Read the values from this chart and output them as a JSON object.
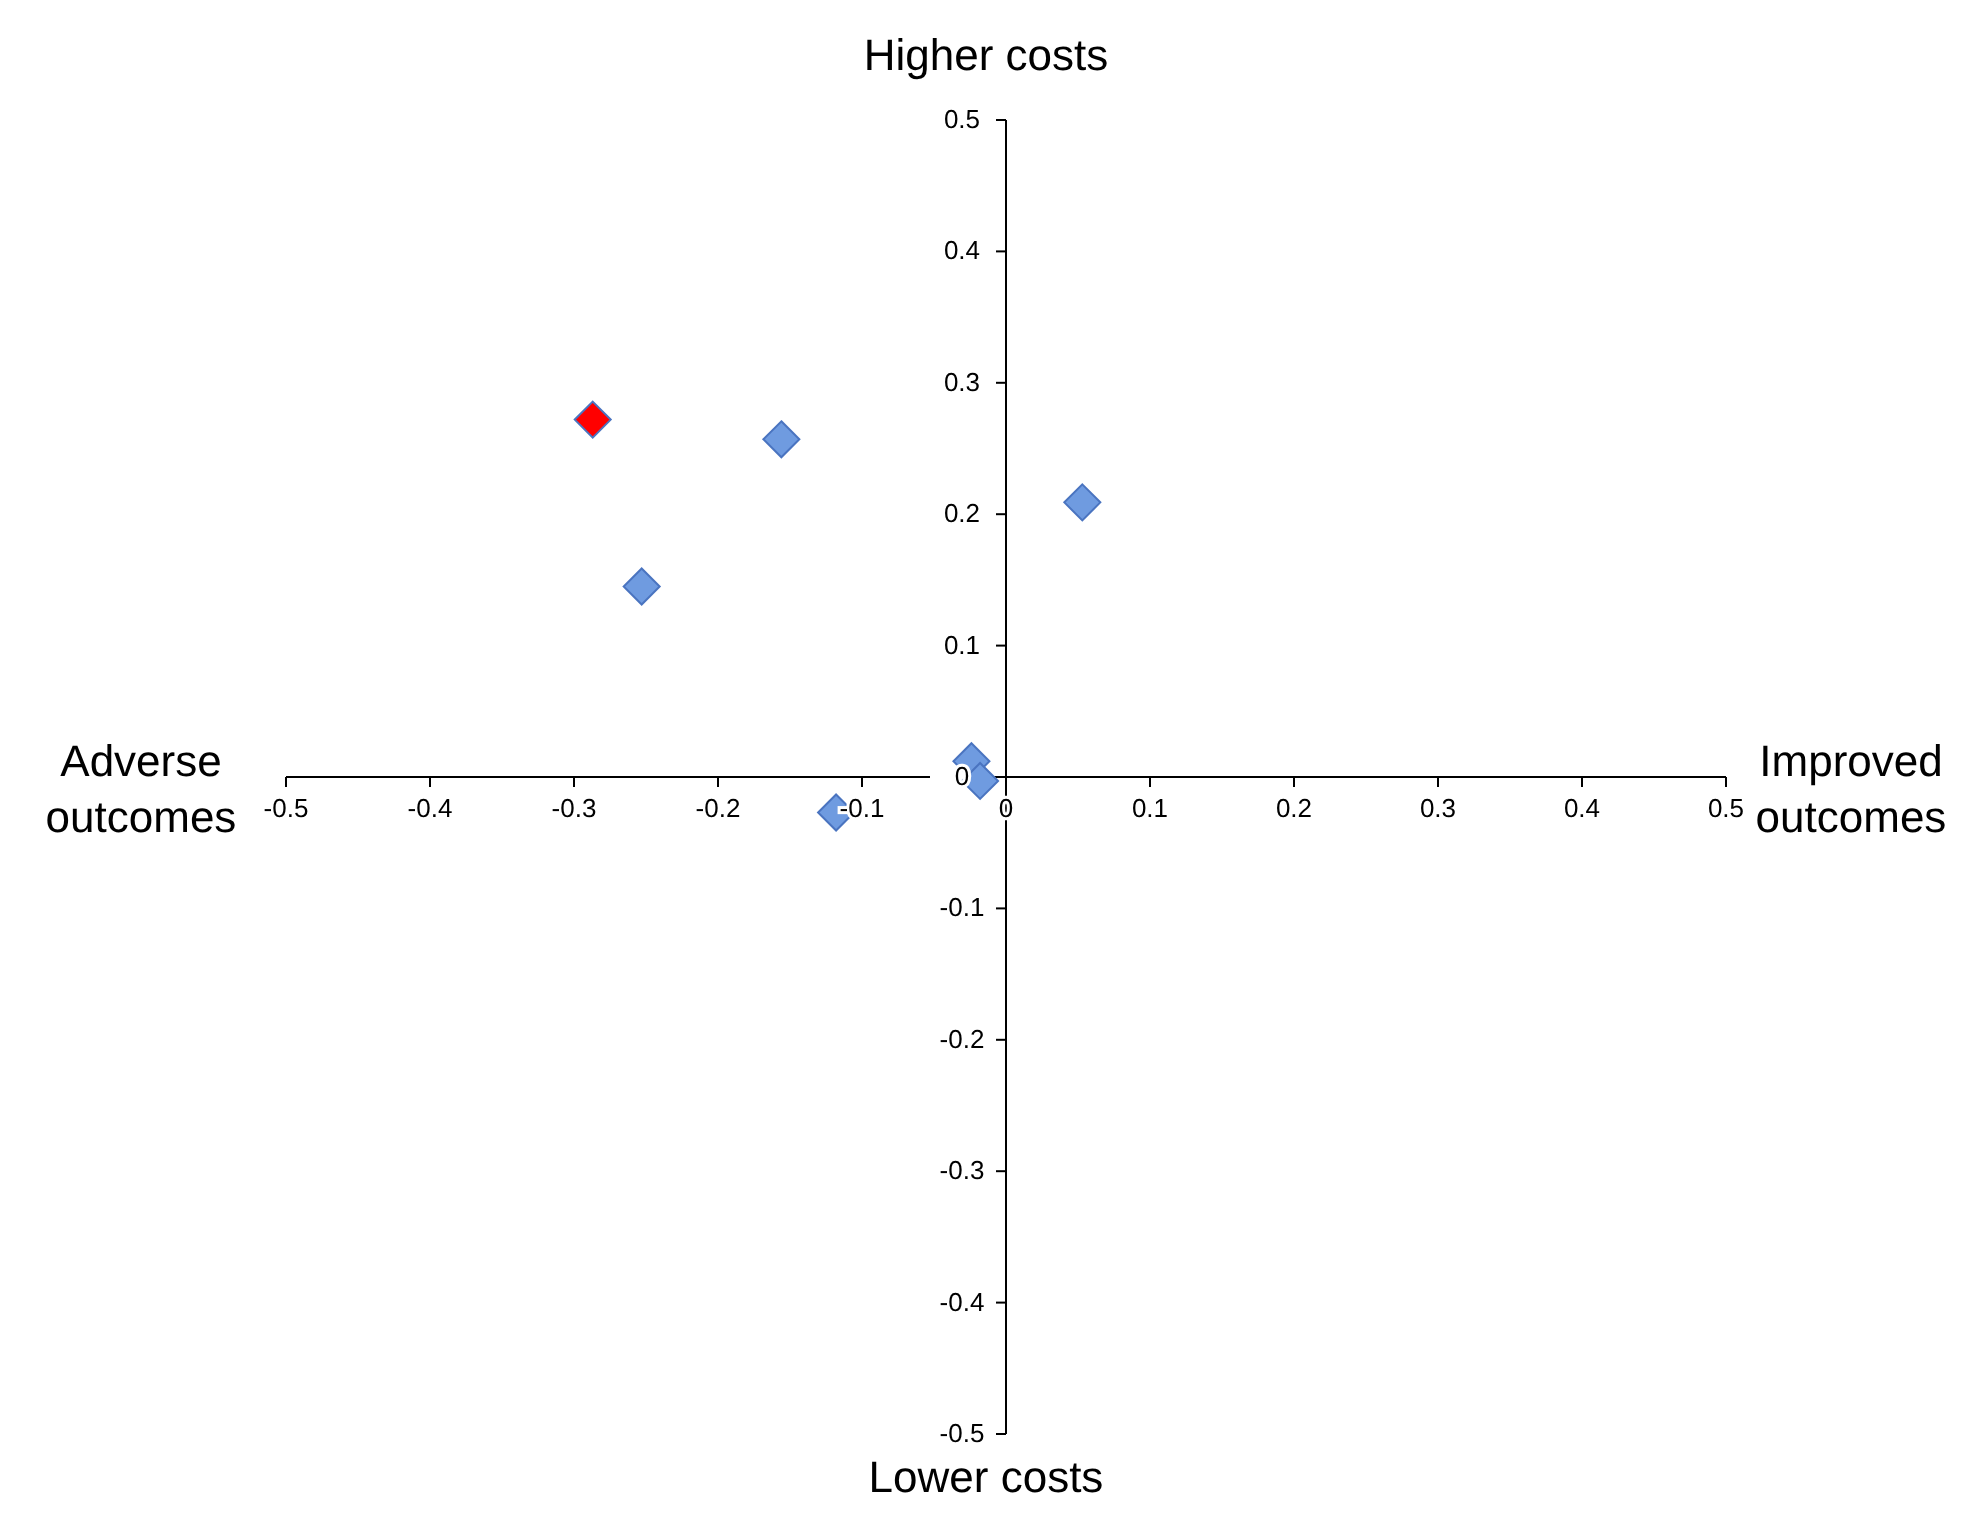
{
  "chart_data": {
    "type": "scatter",
    "annotations": [
      "Higher costs",
      "Lower costs",
      "Adverse outcomes",
      "Improved outcomes"
    ],
    "series": [
      {
        "color": "#6f9be0",
        "x": [
          -0.156,
          0.053,
          -0.253,
          -0.024,
          -0.018,
          -0.118
        ],
        "values": [
          0.257,
          0.209,
          0.145,
          0.012,
          -0.003,
          -0.027
        ]
      },
      {
        "color": "#ff0000",
        "x": [
          -0.287
        ],
        "values": [
          0.272
        ]
      }
    ],
    "xlim": [
      -0.5,
      0.5
    ],
    "xticks": [
      -0.5,
      -0.4,
      -0.3,
      -0.2,
      -0.1,
      0,
      0.1,
      0.2,
      0.3,
      0.4,
      0.5
    ],
    "ylim": [
      -0.5,
      0.5
    ],
    "yticks": [
      -0.5,
      -0.4,
      -0.3,
      -0.2,
      -0.1,
      0,
      0.1,
      0.2,
      0.3,
      0.4,
      0.5
    ],
    "marker": "diamond"
  }
}
